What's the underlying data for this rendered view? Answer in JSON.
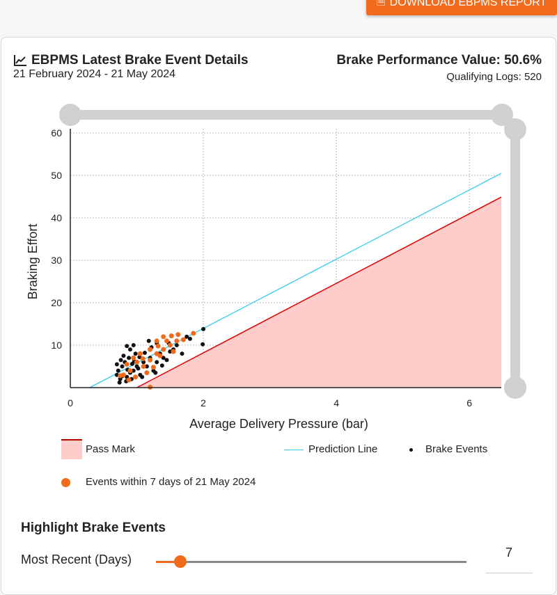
{
  "header": {
    "download_label": "DOWNLOAD EBPMS REPORT",
    "download_icon": "pdf-icon"
  },
  "card": {
    "title": "EBPMS Latest Brake Event Details",
    "title_icon": "line-chart-icon",
    "date_range": "21 February 2024 - 21 May 2024",
    "bpv": "Brake Performance Value: 50.6%",
    "qualifying": "Qualifying Logs: 520"
  },
  "chart_data": {
    "type": "scatter",
    "xlabel": "Average Delivery Pressure (bar)",
    "ylabel": "Braking Effort",
    "xlim": [
      0,
      6.48
    ],
    "ylim": [
      0,
      61
    ],
    "xticks": [
      "0",
      "2",
      "4",
      "6"
    ],
    "yticks": [
      "10",
      "20",
      "30",
      "40",
      "50",
      "60"
    ],
    "grid": true,
    "colors": {
      "pass": "#e00000",
      "pass_fill": "#ffcccc",
      "prediction": "#33ccee",
      "events": "#111111",
      "recent": "#f26b1d"
    },
    "pass_mark": {
      "x": [
        1.0,
        6.48
      ],
      "y": [
        0,
        44.9
      ]
    },
    "prediction_line": {
      "x": [
        0.29,
        6.48
      ],
      "y": [
        0,
        50.5
      ]
    },
    "brake_events": [
      [
        0.75,
        2
      ],
      [
        0.8,
        3
      ],
      [
        0.72,
        4
      ],
      [
        0.85,
        2.5
      ],
      [
        0.9,
        3.5
      ],
      [
        0.78,
        5
      ],
      [
        0.82,
        6
      ],
      [
        0.95,
        4
      ],
      [
        1.0,
        5
      ],
      [
        0.88,
        7
      ],
      [
        0.7,
        3
      ],
      [
        0.76,
        6.5
      ],
      [
        0.92,
        2
      ],
      [
        1.05,
        3
      ],
      [
        1.1,
        6
      ],
      [
        0.98,
        8
      ],
      [
        1.15,
        5
      ],
      [
        1.2,
        7
      ],
      [
        0.84,
        1.5
      ],
      [
        0.74,
        1.2
      ],
      [
        1.02,
        4.5
      ],
      [
        1.08,
        2.5
      ],
      [
        0.9,
        9
      ],
      [
        0.86,
        4.2
      ],
      [
        0.8,
        7.5
      ],
      [
        1.25,
        4
      ],
      [
        1.3,
        6
      ],
      [
        1.35,
        8
      ],
      [
        1.4,
        7
      ],
      [
        1.22,
        9.5
      ],
      [
        1.5,
        8.5
      ],
      [
        1.45,
        6.5
      ],
      [
        1.55,
        9
      ],
      [
        1.6,
        10
      ],
      [
        1.3,
        10.5
      ],
      [
        0.95,
        10
      ],
      [
        0.85,
        9.8
      ],
      [
        1.18,
        11
      ],
      [
        1.75,
        12
      ],
      [
        1.8,
        11.5
      ],
      [
        2.0,
        13.8
      ],
      [
        1.99,
        10.2
      ],
      [
        1.68,
        8
      ],
      [
        1.48,
        10.5
      ],
      [
        1.28,
        3.5
      ],
      [
        0.96,
        6.2
      ],
      [
        1.12,
        8.2
      ],
      [
        0.7,
        5.5
      ],
      [
        0.78,
        2.7
      ],
      [
        1.04,
        7.2
      ],
      [
        0.93,
        5.6
      ],
      [
        1.38,
        5.2
      ]
    ],
    "recent_events": [
      [
        0.8,
        3
      ],
      [
        0.9,
        4
      ],
      [
        1.0,
        6
      ],
      [
        1.1,
        5
      ],
      [
        0.95,
        7
      ],
      [
        1.2,
        6.5
      ],
      [
        1.3,
        8
      ],
      [
        1.4,
        9
      ],
      [
        1.5,
        10
      ],
      [
        1.6,
        11
      ],
      [
        1.62,
        12.5
      ],
      [
        1.4,
        12
      ],
      [
        1.3,
        11
      ],
      [
        1.55,
        8.5
      ],
      [
        1.7,
        11.3
      ],
      [
        1.85,
        12.8
      ],
      [
        1.2,
        9
      ],
      [
        1.05,
        8
      ],
      [
        0.85,
        5.5
      ],
      [
        0.75,
        2.8
      ],
      [
        1.15,
        3.5
      ],
      [
        1.25,
        4.8
      ],
      [
        1.35,
        7.5
      ],
      [
        1.45,
        11
      ],
      [
        1.52,
        12.2
      ],
      [
        0.98,
        2.5
      ],
      [
        1.09,
        6.8
      ],
      [
        0.88,
        1.8
      ],
      [
        1.2,
        0.1
      ],
      [
        1.32,
        9.8
      ]
    ],
    "legend": {
      "pass": "Pass Mark",
      "prediction": "Prediction Line",
      "events": "Brake Events",
      "recent": "Events within 7 days of 21 May 2024"
    },
    "legend_position": "bottom"
  },
  "highlight": {
    "title": "Highlight Brake Events",
    "label": "Most Recent (Days)",
    "value": "7",
    "slider_fraction": 0.078
  }
}
